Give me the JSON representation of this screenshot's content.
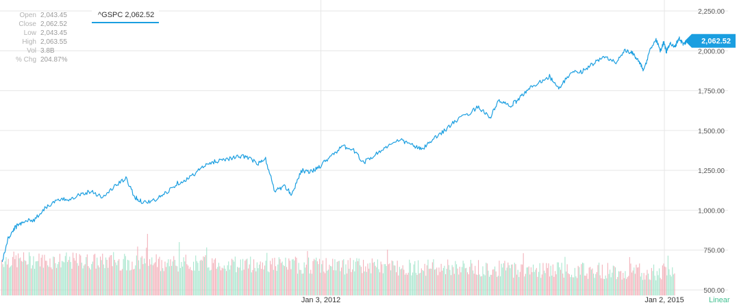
{
  "stats": [
    {
      "label": "Open",
      "value": "2,043.45"
    },
    {
      "label": "Close",
      "value": "2,062.52"
    },
    {
      "label": "Low",
      "value": "2,043.45"
    },
    {
      "label": "High",
      "value": "2,063.55"
    },
    {
      "label": "Vol",
      "value": "3.8B"
    },
    {
      "label": "% Chg",
      "value": "204.87%"
    }
  ],
  "legend": {
    "symbol_label": "^GSPC 2,062.52"
  },
  "scale_mode": "Linear",
  "colors": {
    "line": "#1a9ee0",
    "volume_up": "#9fe3c9",
    "volume_down": "#f2a8b2",
    "grid": "#e6e6e6",
    "badge": "#1a9ee0"
  },
  "chart_data": {
    "type": "line",
    "series": [
      {
        "symbol": "^GSPC",
        "last_value_label": "2,062.52",
        "points": [
          [
            2009.22,
            676
          ],
          [
            2009.27,
            820
          ],
          [
            2009.33,
            890
          ],
          [
            2009.4,
            930
          ],
          [
            2009.5,
            940
          ],
          [
            2009.6,
            1020
          ],
          [
            2009.7,
            1060
          ],
          [
            2009.8,
            1070
          ],
          [
            2009.9,
            1100
          ],
          [
            2010.0,
            1120
          ],
          [
            2010.1,
            1080
          ],
          [
            2010.2,
            1150
          ],
          [
            2010.3,
            1200
          ],
          [
            2010.38,
            1080
          ],
          [
            2010.45,
            1050
          ],
          [
            2010.55,
            1060
          ],
          [
            2010.65,
            1110
          ],
          [
            2010.75,
            1170
          ],
          [
            2010.85,
            1200
          ],
          [
            2010.95,
            1260
          ],
          [
            2011.05,
            1300
          ],
          [
            2011.15,
            1320
          ],
          [
            2011.25,
            1330
          ],
          [
            2011.35,
            1340
          ],
          [
            2011.45,
            1290
          ],
          [
            2011.52,
            1320
          ],
          [
            2011.6,
            1120
          ],
          [
            2011.68,
            1150
          ],
          [
            2011.75,
            1100
          ],
          [
            2011.83,
            1250
          ],
          [
            2011.92,
            1240
          ],
          [
            2012.0,
            1280
          ],
          [
            2012.1,
            1350
          ],
          [
            2012.2,
            1400
          ],
          [
            2012.28,
            1380
          ],
          [
            2012.38,
            1300
          ],
          [
            2012.48,
            1350
          ],
          [
            2012.58,
            1400
          ],
          [
            2012.7,
            1440
          ],
          [
            2012.8,
            1410
          ],
          [
            2012.88,
            1380
          ],
          [
            2012.98,
            1440
          ],
          [
            2013.08,
            1500
          ],
          [
            2013.18,
            1560
          ],
          [
            2013.28,
            1600
          ],
          [
            2013.38,
            1650
          ],
          [
            2013.48,
            1580
          ],
          [
            2013.56,
            1690
          ],
          [
            2013.65,
            1650
          ],
          [
            2013.72,
            1690
          ],
          [
            2013.8,
            1750
          ],
          [
            2013.9,
            1800
          ],
          [
            2014.0,
            1840
          ],
          [
            2014.08,
            1760
          ],
          [
            2014.18,
            1860
          ],
          [
            2014.28,
            1870
          ],
          [
            2014.38,
            1920
          ],
          [
            2014.48,
            1960
          ],
          [
            2014.58,
            1930
          ],
          [
            2014.66,
            2000
          ],
          [
            2014.72,
            1985
          ],
          [
            2014.78,
            1940
          ],
          [
            2014.82,
            1870
          ],
          [
            2014.88,
            2010
          ],
          [
            2014.93,
            2070
          ],
          [
            2014.97,
            2000
          ],
          [
            2015.0,
            2060
          ],
          [
            2015.02,
            1990
          ],
          [
            2015.05,
            2050
          ],
          [
            2015.09,
            2020
          ],
          [
            2015.13,
            2080
          ],
          [
            2015.17,
            2040
          ],
          [
            2015.2,
            2062.52
          ]
        ]
      }
    ],
    "yaxis": {
      "ticks": [
        500,
        750,
        1000,
        1250,
        1500,
        1750,
        2000,
        2250
      ],
      "tick_labels": [
        "500.00",
        "750.00",
        "1,000.00",
        "1,250.00",
        "1,500.00",
        "1,750.00",
        "2,000.00",
        "2,250.00"
      ],
      "ylim": [
        500,
        2300
      ]
    },
    "xaxis": {
      "xlim": [
        2009.2,
        2015.2
      ],
      "ticks": [
        2012.003,
        2015.003
      ],
      "tick_labels": [
        "Jan 3, 2012",
        "Jan 2, 2015"
      ]
    },
    "volume": {
      "shown": true
    },
    "grid": true
  }
}
